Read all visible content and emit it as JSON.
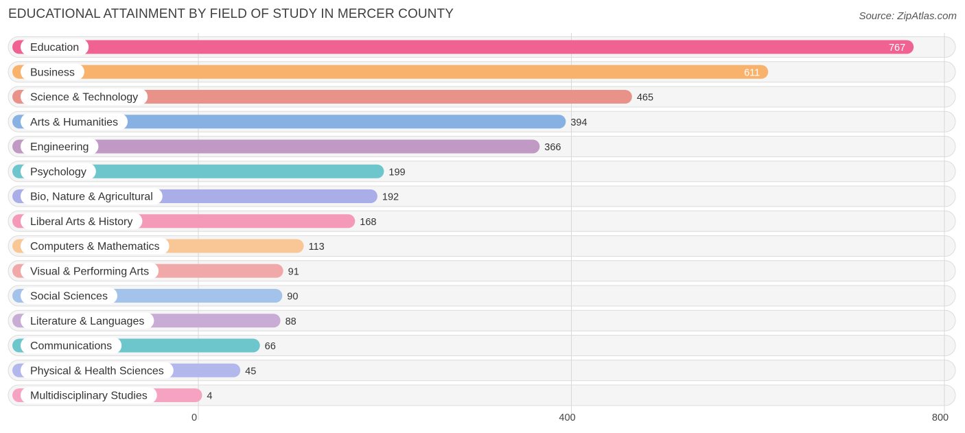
{
  "header": {
    "title": "EDUCATIONAL ATTAINMENT BY FIELD OF STUDY IN MERCER COUNTY",
    "source": "Source: ZipAtlas.com"
  },
  "chart_data": {
    "type": "bar",
    "orientation": "horizontal",
    "title": "EDUCATIONAL ATTAINMENT BY FIELD OF STUDY IN MERCER COUNTY",
    "xlabel": "",
    "ylabel": "",
    "xlim": [
      0,
      800
    ],
    "ticks": [
      0,
      400,
      800
    ],
    "grid": true,
    "categories": [
      "Education",
      "Business",
      "Science & Technology",
      "Arts & Humanities",
      "Engineering",
      "Psychology",
      "Bio, Nature & Agricultural",
      "Liberal Arts & History",
      "Computers & Mathematics",
      "Visual & Performing Arts",
      "Social Sciences",
      "Literature & Languages",
      "Communications",
      "Physical & Health Sciences",
      "Multidisciplinary Studies"
    ],
    "values": [
      767,
      611,
      465,
      394,
      366,
      199,
      192,
      168,
      113,
      91,
      90,
      88,
      66,
      45,
      4
    ],
    "colors": [
      "#f06292",
      "#f9b26b",
      "#e9928a",
      "#86b1e2",
      "#c09ac4",
      "#6cc6cb",
      "#a9aee9",
      "#f49ab8",
      "#f9c796",
      "#f0a9a8",
      "#a4c3ea",
      "#c9acd6",
      "#6cc6cb",
      "#b3b8ec",
      "#f6a3c2"
    ]
  }
}
